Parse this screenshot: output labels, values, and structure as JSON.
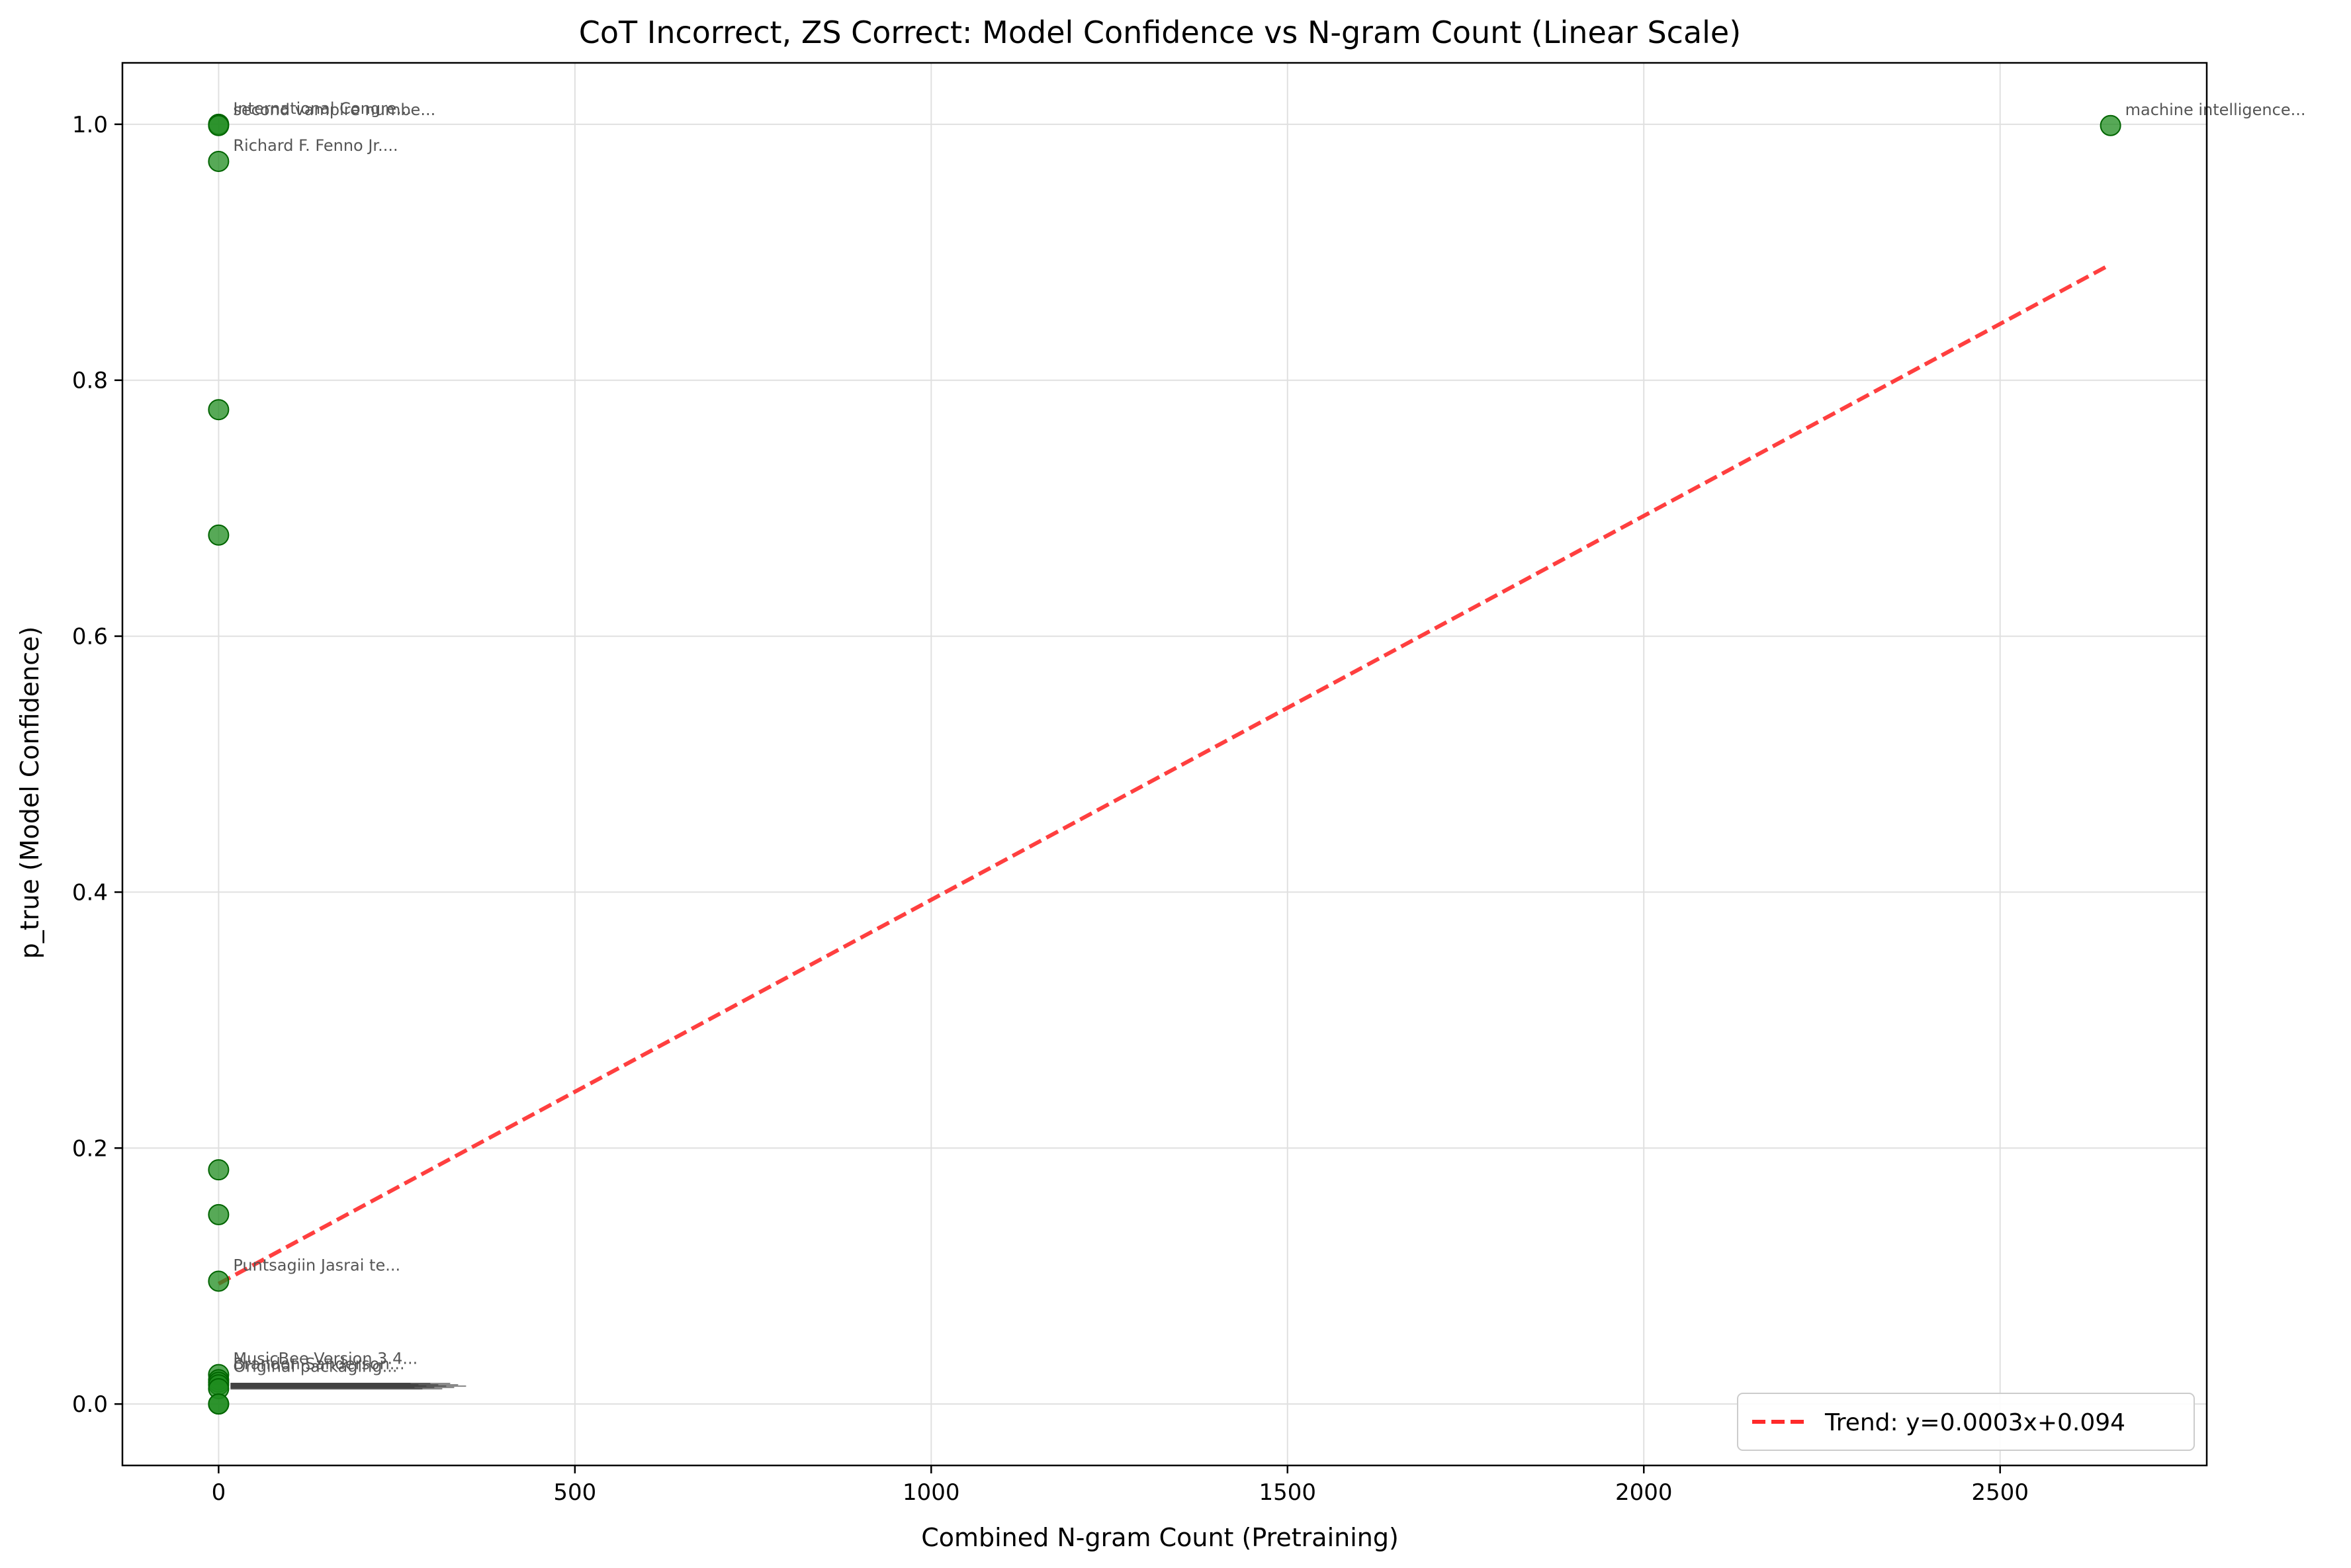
{
  "colors": {
    "point": "#1f8c1f",
    "point_edge": "#006400",
    "trend": "#ff2a2a",
    "grid": "#e0e0e0",
    "axis": "#000000",
    "annotation": "#555555"
  },
  "chart_data": {
    "type": "scatter",
    "title": "CoT Incorrect, ZS Correct: Model Confidence vs N-gram Count (Linear Scale)",
    "xlabel": "Combined N-gram Count (Pretraining)",
    "ylabel": "p_true (Model Confidence)",
    "xlim": [
      -135,
      2790
    ],
    "ylim": [
      -0.048,
      1.048
    ],
    "xticks": [
      0,
      500,
      1000,
      1500,
      2000,
      2500
    ],
    "yticks": [
      0.0,
      0.2,
      0.4,
      0.6,
      0.8,
      1.0
    ],
    "xtick_labels": [
      "0",
      "500",
      "1000",
      "1500",
      "2000",
      "2500"
    ],
    "ytick_labels": [
      "0.0",
      "0.2",
      "0.4",
      "0.6",
      "0.8",
      "1.0"
    ],
    "grid": true,
    "legend_position": "lower-right",
    "points": [
      {
        "x": 0,
        "y": 1.0,
        "label": "International Congre..."
      },
      {
        "x": 0,
        "y": 0.999,
        "label": "second vampire numbe..."
      },
      {
        "x": 0,
        "y": 0.971,
        "label": "Richard F. Fenno Jr...."
      },
      {
        "x": 0,
        "y": 0.777,
        "label": ""
      },
      {
        "x": 0,
        "y": 0.679,
        "label": ""
      },
      {
        "x": 0,
        "y": 0.183,
        "label": ""
      },
      {
        "x": 0,
        "y": 0.148,
        "label": ""
      },
      {
        "x": 0,
        "y": 0.096,
        "label": "Puntsagiin Jasrai te..."
      },
      {
        "x": 0,
        "y": 0.023,
        "label": "MusicBee Version 3.4..."
      },
      {
        "x": 0,
        "y": 0.019,
        "label": "Brandon Sanderson..."
      },
      {
        "x": 0,
        "y": 0.017,
        "label": "Original packaging..."
      },
      {
        "x": 0,
        "y": 0.015,
        "label": ""
      },
      {
        "x": 0,
        "y": 0.012,
        "label": ""
      },
      {
        "x": 0,
        "y": 0.0,
        "label": ""
      },
      {
        "x": 0,
        "y": 0.0,
        "label": ""
      },
      {
        "x": 2655,
        "y": 0.999,
        "label": "machine intelligence..."
      }
    ],
    "trend": {
      "slope": 0.0003,
      "intercept": 0.094,
      "x_range": [
        0,
        2655
      ],
      "legend_label": "Trend: y=0.0003x+0.094"
    }
  }
}
